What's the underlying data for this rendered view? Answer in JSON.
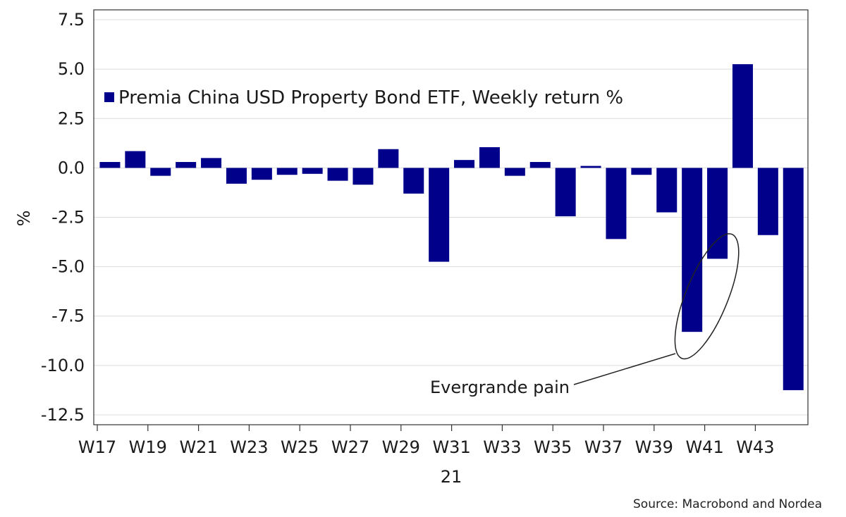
{
  "chart_data": {
    "type": "bar",
    "series": [
      {
        "name": "Premia China USD Property Bond ETF, Weekly return %",
        "color": "#00008b",
        "x": [
          "W17",
          "W18",
          "W19",
          "W20",
          "W21",
          "W22",
          "W23",
          "W24",
          "W25",
          "W26",
          "W27",
          "W28",
          "W29",
          "W30",
          "W31",
          "W32",
          "W33",
          "W34",
          "W35",
          "W36",
          "W37",
          "W38",
          "W39",
          "W40",
          "W41",
          "W42",
          "W43",
          "W44"
        ],
        "values": [
          0.3,
          0.85,
          -0.4,
          0.3,
          0.5,
          -0.8,
          -0.6,
          -0.35,
          -0.3,
          -0.65,
          -0.85,
          0.95,
          -1.3,
          -4.75,
          0.4,
          1.05,
          -0.4,
          0.3,
          -2.45,
          0.1,
          -3.6,
          -0.35,
          -2.25,
          -8.3,
          -4.6,
          5.25,
          -3.4,
          -11.25
        ]
      }
    ],
    "xtick_labels": [
      "W17",
      "W19",
      "W21",
      "W23",
      "W25",
      "W27",
      "W29",
      "W31",
      "W33",
      "W35",
      "W37",
      "W39",
      "W41",
      "W43"
    ],
    "xaxis_sublabel": "21",
    "ylabel": "%",
    "ylim": [
      -13.0,
      8.0
    ],
    "yticks": [
      "7.5",
      "5.0",
      "2.5",
      "0.0",
      "-2.5",
      "-5.0",
      "-7.5",
      "-10.0",
      "-12.5"
    ],
    "ytick_values": [
      7.5,
      5.0,
      2.5,
      0.0,
      -2.5,
      -5.0,
      -7.5,
      -10.0,
      -12.5
    ],
    "grid": true,
    "legend_position": "top-left",
    "annotation": {
      "text": "Evergrande pain",
      "target_weeks": [
        "W40",
        "W41"
      ]
    }
  },
  "source": "Source: Macrobond and Nordea"
}
